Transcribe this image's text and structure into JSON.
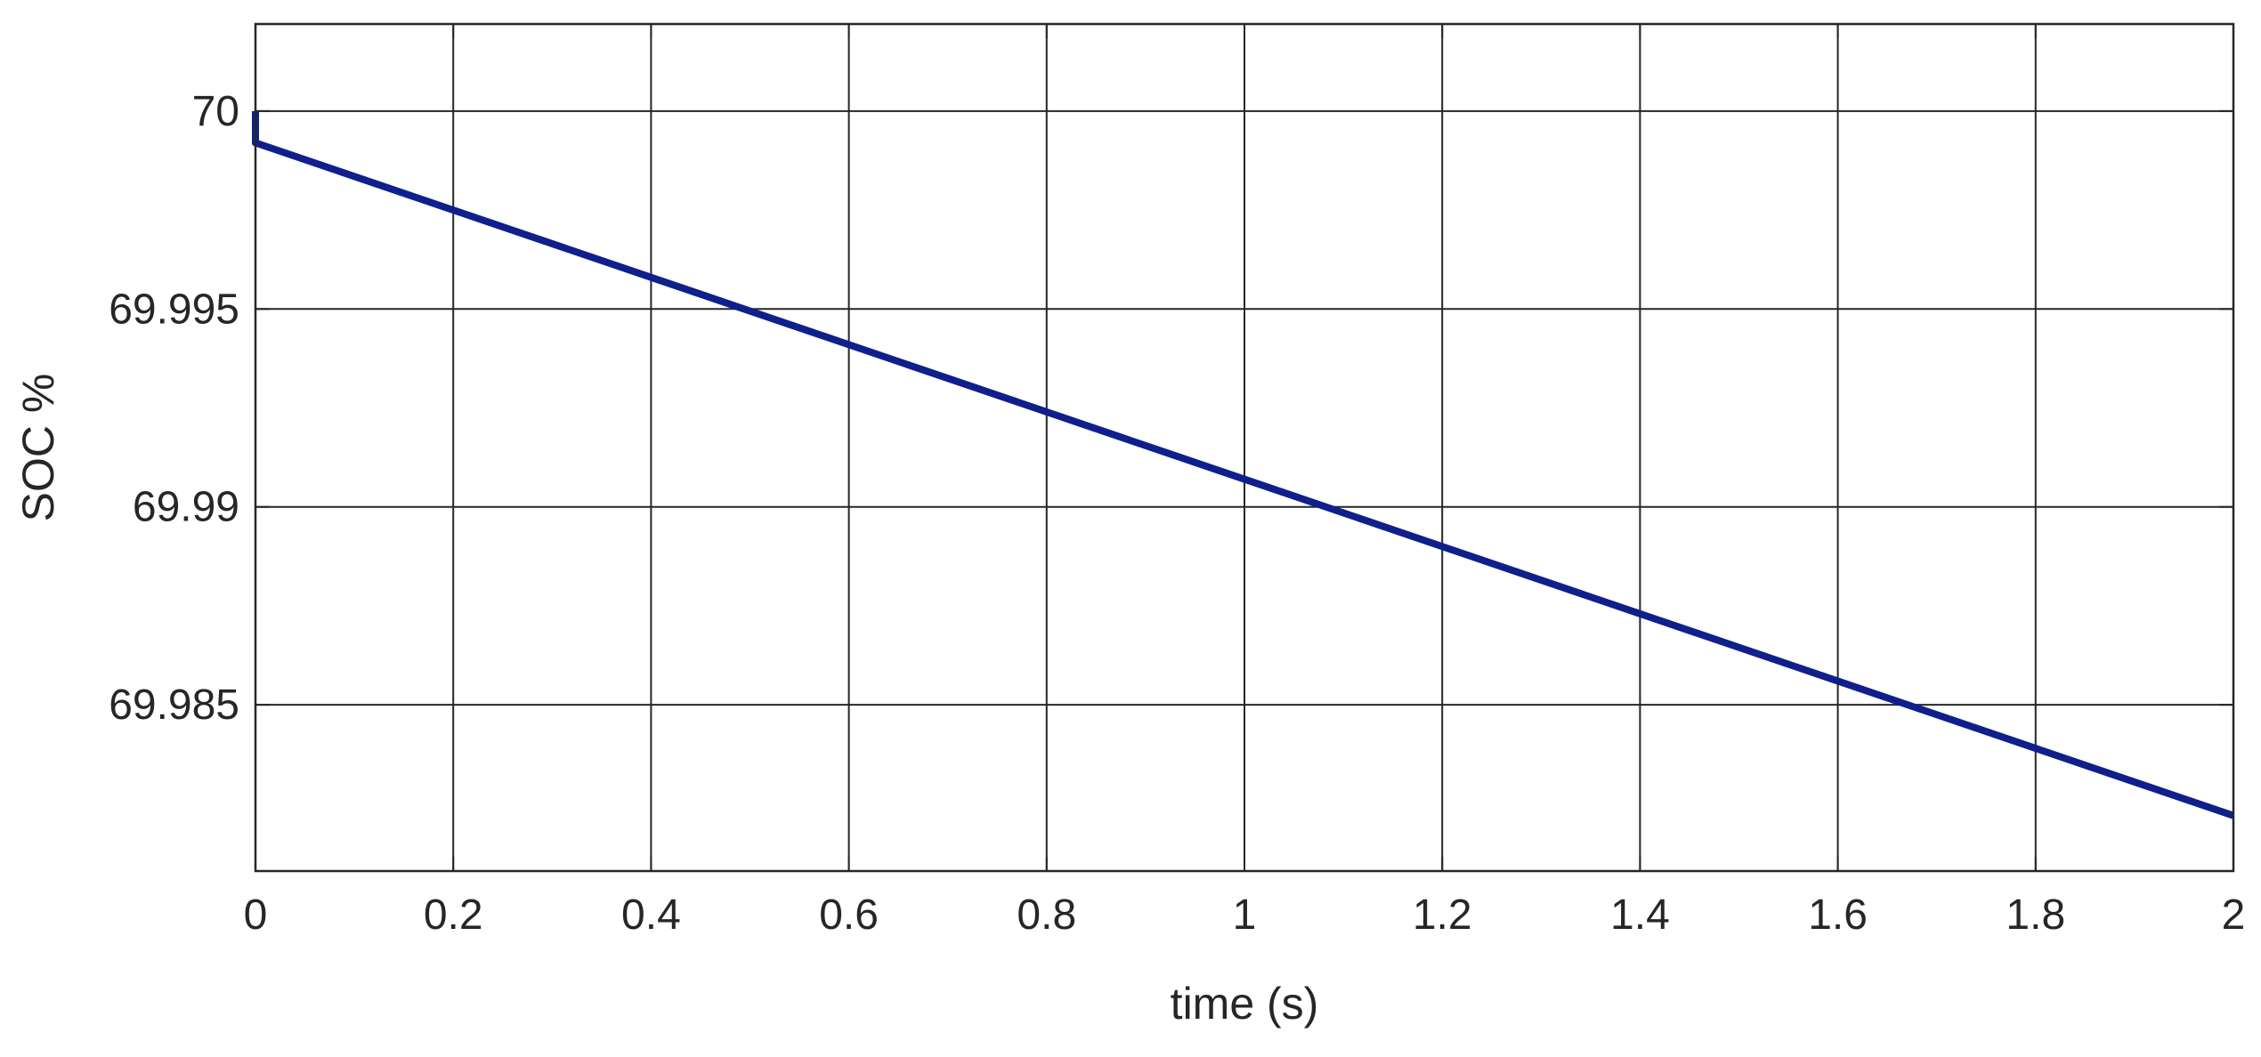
{
  "chart_data": {
    "type": "line",
    "title": "",
    "xlabel": "time (s)",
    "ylabel": "SOC %",
    "xlim": [
      0,
      2
    ],
    "ylim": [
      69.9808,
      70.0022
    ],
    "xticks": [
      0,
      0.2,
      0.4,
      0.6,
      0.8,
      1,
      1.2,
      1.4,
      1.6,
      1.8,
      2
    ],
    "xtick_labels": [
      "0",
      "0.2",
      "0.4",
      "0.6",
      "0.8",
      "1",
      "1.2",
      "1.4",
      "1.6",
      "1.8",
      "2"
    ],
    "yticks": [
      69.985,
      69.99,
      69.995,
      70
    ],
    "ytick_labels": [
      "69.985",
      "69.99",
      "69.995",
      "70"
    ],
    "grid": true,
    "colors": {
      "line": "#0f1f8c",
      "grid": "#262626",
      "axes": "#262626",
      "text": "#262626"
    },
    "series": [
      {
        "x": [
          0,
          0,
          2
        ],
        "y": [
          70.0,
          69.9992,
          69.9822
        ]
      }
    ]
  }
}
